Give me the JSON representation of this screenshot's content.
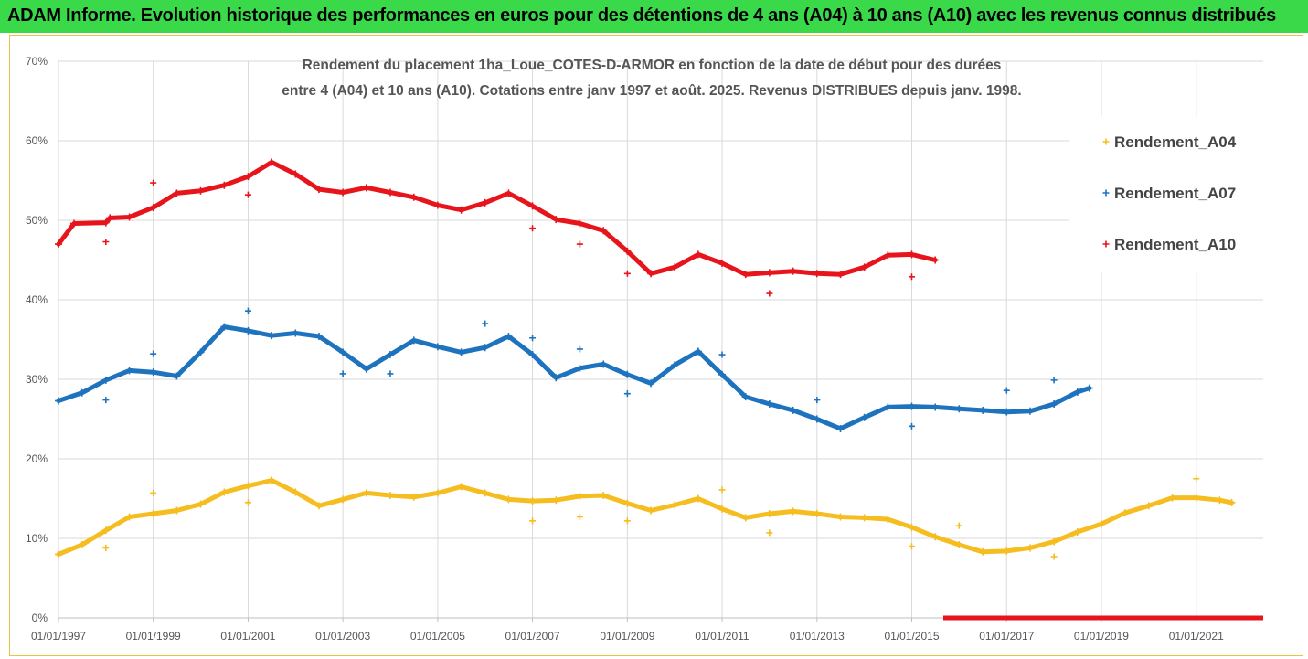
{
  "banner": {
    "title": "ADAM Informe. Evolution historique des performances en euros pour des détentions de 4 ans (A04) à 10 ans (A10) avec les revenus connus distribués"
  },
  "colors": {
    "banner_bg": "#39d94a",
    "A04": "#f5bd1f",
    "A07": "#1e73be",
    "A10": "#e8141c"
  },
  "chart_data": {
    "type": "scatter",
    "title_lines": [
      "Rendement du placement 1ha_Loue_COTES-D-ARMOR en fonction de la date de début pour des durées",
      "entre 4 (A04) et 10 ans (A10). Cotations entre janv 1997 et août. 2025. Revenus DISTRIBUES depuis janv. 1998."
    ],
    "xlabel": "",
    "ylabel": "",
    "x_range": [
      "1997-01-01",
      "2022-06-01"
    ],
    "ylim": [
      0,
      0.7
    ],
    "y_ticks": [
      "0%",
      "10%",
      "20%",
      "30%",
      "40%",
      "50%",
      "60%",
      "70%"
    ],
    "x_ticks": [
      "01/01/1997",
      "01/01/1999",
      "01/01/2001",
      "01/01/2003",
      "01/01/2005",
      "01/01/2007",
      "01/01/2009",
      "01/01/2011",
      "01/01/2013",
      "01/01/2015",
      "01/01/2017",
      "01/01/2019",
      "01/01/2021"
    ],
    "grid": true,
    "legend_position": "right",
    "series": [
      {
        "name": "Rendement_A04",
        "color": "#f5bd1f",
        "points": [
          [
            "1997-01-01",
            0.08
          ],
          [
            "1997-07-01",
            0.092
          ],
          [
            "1998-01-01",
            0.11
          ],
          [
            "1998-07-01",
            0.127
          ],
          [
            "1999-01-01",
            0.131
          ],
          [
            "1999-07-01",
            0.135
          ],
          [
            "2000-01-01",
            0.143
          ],
          [
            "2000-07-01",
            0.158
          ],
          [
            "2001-01-01",
            0.166
          ],
          [
            "2001-07-01",
            0.173
          ],
          [
            "2002-01-01",
            0.158
          ],
          [
            "2002-07-01",
            0.141
          ],
          [
            "2003-01-01",
            0.149
          ],
          [
            "2003-07-01",
            0.157
          ],
          [
            "2004-01-01",
            0.154
          ],
          [
            "2004-07-01",
            0.152
          ],
          [
            "2005-01-01",
            0.157
          ],
          [
            "2005-07-01",
            0.165
          ],
          [
            "2006-01-01",
            0.157
          ],
          [
            "2006-07-01",
            0.149
          ],
          [
            "2007-01-01",
            0.147
          ],
          [
            "2007-07-01",
            0.148
          ],
          [
            "2008-01-01",
            0.153
          ],
          [
            "2008-07-01",
            0.154
          ],
          [
            "2009-01-01",
            0.144
          ],
          [
            "2009-07-01",
            0.135
          ],
          [
            "2010-01-01",
            0.142
          ],
          [
            "2010-07-01",
            0.15
          ],
          [
            "2011-01-01",
            0.137
          ],
          [
            "2011-07-01",
            0.126
          ],
          [
            "2012-01-01",
            0.131
          ],
          [
            "2012-07-01",
            0.134
          ],
          [
            "2013-01-01",
            0.131
          ],
          [
            "2013-07-01",
            0.127
          ],
          [
            "2014-01-01",
            0.126
          ],
          [
            "2014-07-01",
            0.124
          ],
          [
            "2015-01-01",
            0.114
          ],
          [
            "2015-07-01",
            0.102
          ],
          [
            "2016-01-01",
            0.092
          ],
          [
            "2016-07-01",
            0.083
          ],
          [
            "2017-01-01",
            0.084
          ],
          [
            "2017-07-01",
            0.088
          ],
          [
            "2018-01-01",
            0.096
          ],
          [
            "2018-07-01",
            0.108
          ],
          [
            "2019-01-01",
            0.118
          ],
          [
            "2019-07-01",
            0.132
          ],
          [
            "2020-01-01",
            0.141
          ],
          [
            "2020-07-01",
            0.151
          ],
          [
            "2021-01-01",
            0.151
          ],
          [
            "2021-07-01",
            0.148
          ],
          [
            "2021-10-01",
            0.145
          ]
        ],
        "outliers": [
          [
            "1998-01-01",
            0.088
          ],
          [
            "1999-01-01",
            0.157
          ],
          [
            "2001-01-01",
            0.145
          ],
          [
            "2007-01-01",
            0.122
          ],
          [
            "2008-01-01",
            0.127
          ],
          [
            "2009-01-01",
            0.122
          ],
          [
            "2011-01-01",
            0.161
          ],
          [
            "2012-01-01",
            0.107
          ],
          [
            "2015-01-01",
            0.09
          ],
          [
            "2016-01-01",
            0.116
          ],
          [
            "2018-01-01",
            0.077
          ],
          [
            "2021-01-01",
            0.175
          ]
        ]
      },
      {
        "name": "Rendement_A07",
        "color": "#1e73be",
        "points": [
          [
            "1997-01-01",
            0.273
          ],
          [
            "1997-07-01",
            0.283
          ],
          [
            "1998-01-01",
            0.299
          ],
          [
            "1998-07-01",
            0.311
          ],
          [
            "1999-01-01",
            0.309
          ],
          [
            "1999-07-01",
            0.304
          ],
          [
            "2000-01-01",
            0.334
          ],
          [
            "2000-07-01",
            0.366
          ],
          [
            "2001-01-01",
            0.361
          ],
          [
            "2001-07-01",
            0.355
          ],
          [
            "2002-01-01",
            0.358
          ],
          [
            "2002-07-01",
            0.354
          ],
          [
            "2003-01-01",
            0.334
          ],
          [
            "2003-07-01",
            0.313
          ],
          [
            "2004-01-01",
            0.331
          ],
          [
            "2004-07-01",
            0.349
          ],
          [
            "2005-01-01",
            0.341
          ],
          [
            "2005-07-01",
            0.334
          ],
          [
            "2006-01-01",
            0.34
          ],
          [
            "2006-07-01",
            0.354
          ],
          [
            "2007-01-01",
            0.331
          ],
          [
            "2007-07-01",
            0.302
          ],
          [
            "2008-01-01",
            0.314
          ],
          [
            "2008-07-01",
            0.319
          ],
          [
            "2009-01-01",
            0.306
          ],
          [
            "2009-07-01",
            0.295
          ],
          [
            "2010-01-01",
            0.318
          ],
          [
            "2010-07-01",
            0.335
          ],
          [
            "2011-01-01",
            0.306
          ],
          [
            "2011-07-01",
            0.278
          ],
          [
            "2012-01-01",
            0.269
          ],
          [
            "2012-07-01",
            0.261
          ],
          [
            "2013-01-01",
            0.25
          ],
          [
            "2013-07-01",
            0.238
          ],
          [
            "2014-01-01",
            0.252
          ],
          [
            "2014-07-01",
            0.265
          ],
          [
            "2015-01-01",
            0.266
          ],
          [
            "2015-07-01",
            0.265
          ],
          [
            "2016-01-01",
            0.263
          ],
          [
            "2016-07-01",
            0.261
          ],
          [
            "2017-01-01",
            0.259
          ],
          [
            "2017-07-01",
            0.26
          ],
          [
            "2018-01-01",
            0.269
          ],
          [
            "2018-07-01",
            0.284
          ],
          [
            "2018-10-01",
            0.289
          ]
        ],
        "outliers": [
          [
            "1998-01-01",
            0.274
          ],
          [
            "1999-01-01",
            0.332
          ],
          [
            "2001-01-01",
            0.386
          ],
          [
            "2003-01-01",
            0.307
          ],
          [
            "2004-01-01",
            0.307
          ],
          [
            "2006-01-01",
            0.37
          ],
          [
            "2007-01-01",
            0.352
          ],
          [
            "2008-01-01",
            0.338
          ],
          [
            "2009-01-01",
            0.282
          ],
          [
            "2011-01-01",
            0.331
          ],
          [
            "2013-01-01",
            0.274
          ],
          [
            "2015-01-01",
            0.241
          ],
          [
            "2017-01-01",
            0.286
          ],
          [
            "2018-01-01",
            0.299
          ]
        ]
      },
      {
        "name": "Rendement_A10",
        "color": "#e8141c",
        "points": [
          [
            "1997-01-01",
            0.47
          ],
          [
            "1997-05-01",
            0.496
          ],
          [
            "1998-01-01",
            0.497
          ],
          [
            "1998-02-01",
            0.503
          ],
          [
            "1998-07-01",
            0.504
          ],
          [
            "1999-01-01",
            0.516
          ],
          [
            "1999-07-01",
            0.534
          ],
          [
            "2000-01-01",
            0.537
          ],
          [
            "2000-07-01",
            0.544
          ],
          [
            "2001-01-01",
            0.555
          ],
          [
            "2001-07-01",
            0.573
          ],
          [
            "2002-01-01",
            0.558
          ],
          [
            "2002-07-01",
            0.539
          ],
          [
            "2003-01-01",
            0.535
          ],
          [
            "2003-07-01",
            0.541
          ],
          [
            "2004-01-01",
            0.535
          ],
          [
            "2004-07-01",
            0.529
          ],
          [
            "2005-01-01",
            0.519
          ],
          [
            "2005-07-01",
            0.513
          ],
          [
            "2006-01-01",
            0.522
          ],
          [
            "2006-07-01",
            0.534
          ],
          [
            "2007-01-01",
            0.518
          ],
          [
            "2007-07-01",
            0.501
          ],
          [
            "2008-01-01",
            0.496
          ],
          [
            "2008-07-01",
            0.487
          ],
          [
            "2009-01-01",
            0.461
          ],
          [
            "2009-07-01",
            0.433
          ],
          [
            "2010-01-01",
            0.441
          ],
          [
            "2010-07-01",
            0.457
          ],
          [
            "2011-01-01",
            0.446
          ],
          [
            "2011-07-01",
            0.432
          ],
          [
            "2012-01-01",
            0.434
          ],
          [
            "2012-07-01",
            0.436
          ],
          [
            "2013-01-01",
            0.433
          ],
          [
            "2013-07-01",
            0.432
          ],
          [
            "2014-01-01",
            0.441
          ],
          [
            "2014-07-01",
            0.456
          ],
          [
            "2015-01-01",
            0.457
          ],
          [
            "2015-07-01",
            0.45
          ]
        ],
        "outliers": [
          [
            "1998-01-01",
            0.473
          ],
          [
            "1999-01-01",
            0.547
          ],
          [
            "2001-01-01",
            0.532
          ],
          [
            "2007-01-01",
            0.49
          ],
          [
            "2008-01-01",
            0.47
          ],
          [
            "2009-01-01",
            0.433
          ],
          [
            "2012-01-01",
            0.408
          ],
          [
            "2015-01-01",
            0.429
          ]
        ],
        "zero_segment": [
          "2015-09-01",
          "2022-06-01"
        ]
      }
    ]
  }
}
